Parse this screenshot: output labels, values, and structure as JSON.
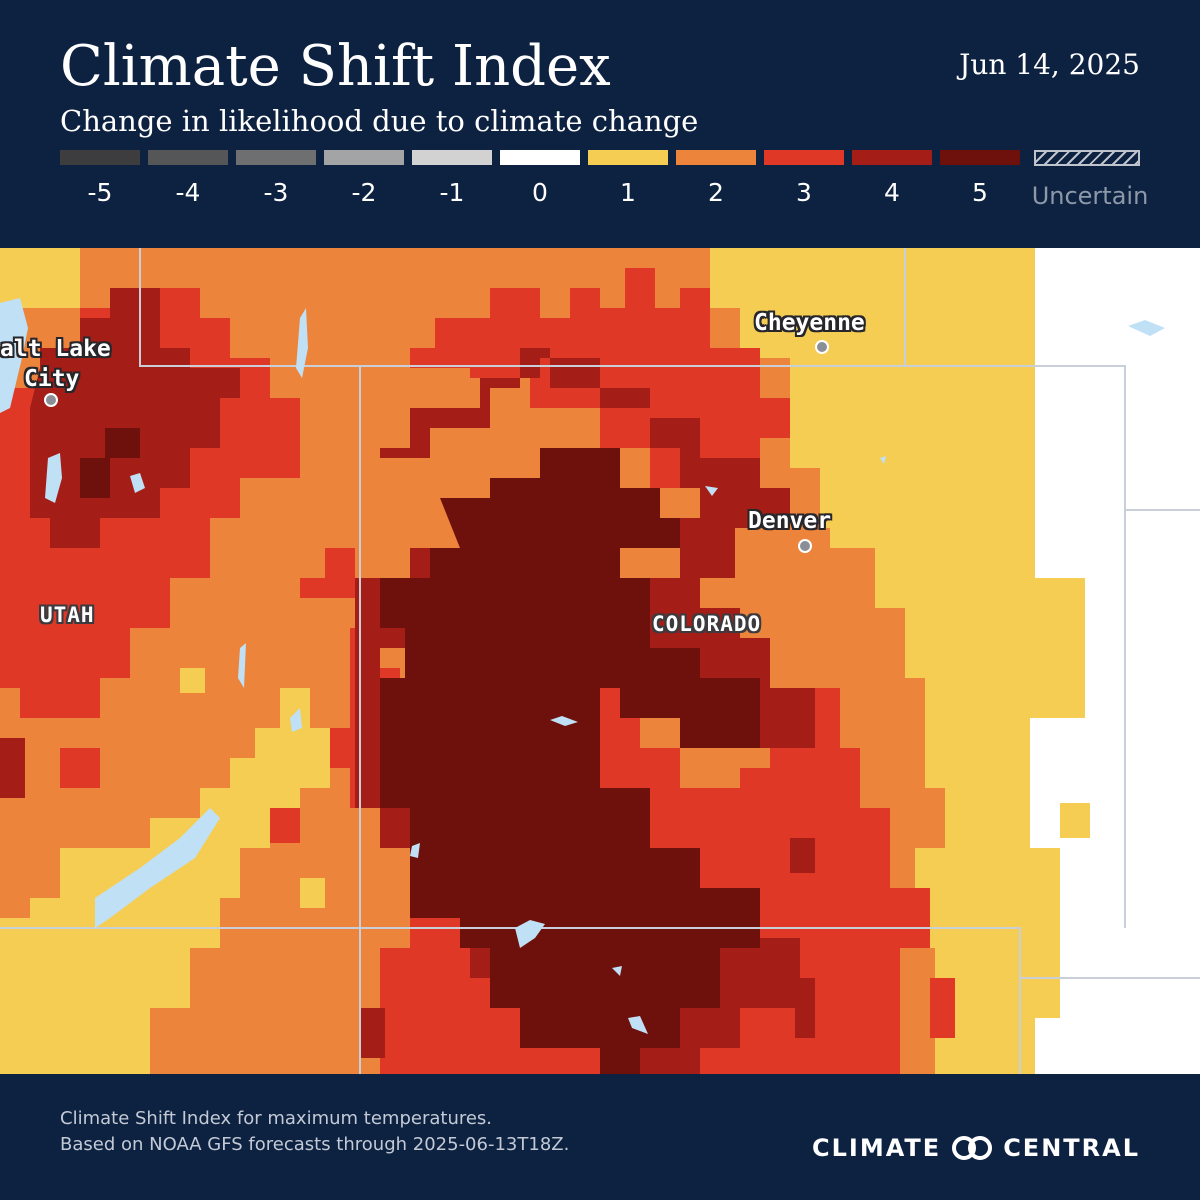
{
  "header": {
    "title": "Climate Shift Index",
    "date": "Jun 14, 2025",
    "subtitle": "Change in likelihood due to climate change"
  },
  "legend": {
    "items": [
      {
        "label": "-5",
        "color": "#3d3d3f"
      },
      {
        "label": "-4",
        "color": "#555658"
      },
      {
        "label": "-3",
        "color": "#6e6f71"
      },
      {
        "label": "-2",
        "color": "#a3a4a6"
      },
      {
        "label": "-1",
        "color": "#d2d2d3"
      },
      {
        "label": "0",
        "color": "#ffffff"
      },
      {
        "label": "1",
        "color": "#f6cd53"
      },
      {
        "label": "2",
        "color": "#ec843b"
      },
      {
        "label": "3",
        "color": "#df3827"
      },
      {
        "label": "4",
        "color": "#a51d17"
      },
      {
        "label": "5",
        "color": "#6e110c"
      }
    ],
    "uncertain_label": "Uncertain"
  },
  "map": {
    "cities": [
      {
        "name": "Cheyenne"
      },
      {
        "name": "Denver"
      },
      {
        "name": "Salt Lake City",
        "line1": "alt Lake",
        "line2": "City"
      }
    ],
    "states": [
      "UTAH",
      "COLORADO"
    ],
    "water_color": "#bfe0f5"
  },
  "footer": {
    "line1": "Climate Shift Index for maximum temperatures.",
    "line2": "Based on NOAA GFS forecasts through 2025-06-13T18Z.",
    "brand_left": "CLIMATE",
    "brand_right": "CENTRAL",
    "logo_icon": "interlocking-rings-logo"
  }
}
